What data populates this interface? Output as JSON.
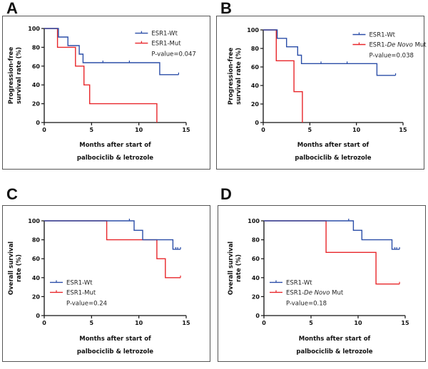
{
  "colors": {
    "wt": "#2b4ea8",
    "mut": "#e8262a",
    "axis": "#111111"
  },
  "chart_data": [
    {
      "type": "line",
      "step": true,
      "panel": "A",
      "title": "",
      "xlabel_lines": [
        "Months after start of",
        "palbociclib & letrozole"
      ],
      "ylabel_lines": [
        "Progression-free",
        "survival rate (%)"
      ],
      "xlim": [
        0,
        15
      ],
      "ylim": [
        0,
        100
      ],
      "xticks": [
        0,
        5,
        10,
        15
      ],
      "yticks": [
        0,
        20,
        40,
        60,
        80,
        100
      ],
      "legend_position": "top-right",
      "pvalue": "P-value=0.047",
      "series": [
        {
          "name": "ESR1-Wt",
          "name_prefix": "ESR1-",
          "name_italic": "",
          "name_suffix": "Wt",
          "color_key": "wt",
          "steps": [
            [
              0,
              100
            ],
            [
              1.5,
              100
            ],
            [
              1.5,
              90.9
            ],
            [
              2.5,
              90.9
            ],
            [
              2.5,
              81.8
            ],
            [
              3.7,
              81.8
            ],
            [
              3.7,
              72.7
            ],
            [
              4.1,
              72.7
            ],
            [
              4.1,
              63.6
            ],
            [
              12.2,
              63.6
            ],
            [
              12.2,
              50.9
            ],
            [
              14.2,
              50.9
            ]
          ],
          "censored": [
            [
              6.2,
              63.6
            ],
            [
              9.0,
              63.6
            ],
            [
              14.2,
              50.9
            ]
          ]
        },
        {
          "name": "ESR1-Mut",
          "name_prefix": "ESR1-",
          "name_italic": "",
          "name_suffix": "Mut",
          "color_key": "mut",
          "steps": [
            [
              0,
              100
            ],
            [
              1.4,
              100
            ],
            [
              1.4,
              80
            ],
            [
              3.3,
              80
            ],
            [
              3.3,
              60
            ],
            [
              4.2,
              60
            ],
            [
              4.2,
              40
            ],
            [
              4.8,
              40
            ],
            [
              4.8,
              20
            ],
            [
              11.9,
              20
            ],
            [
              11.9,
              0
            ]
          ],
          "censored": []
        }
      ]
    },
    {
      "type": "line",
      "step": true,
      "panel": "B",
      "title": "",
      "xlabel_lines": [
        "Months after start of",
        "palbociclib & letrozole"
      ],
      "ylabel_lines": [
        "Progression-free",
        "survival rate (%)"
      ],
      "xlim": [
        0,
        15
      ],
      "ylim": [
        0,
        100
      ],
      "xticks": [
        0,
        5,
        10,
        15
      ],
      "yticks": [
        0,
        20,
        40,
        60,
        80,
        100
      ],
      "legend_position": "top-right",
      "pvalue": "P-value=0.038",
      "series": [
        {
          "name": "ESR1-Wt",
          "name_prefix": "ESR1-",
          "name_italic": "",
          "name_suffix": "Wt",
          "color_key": "wt",
          "steps": [
            [
              0,
              100
            ],
            [
              1.5,
              100
            ],
            [
              1.5,
              90.9
            ],
            [
              2.5,
              90.9
            ],
            [
              2.5,
              81.8
            ],
            [
              3.7,
              81.8
            ],
            [
              3.7,
              72.7
            ],
            [
              4.1,
              72.7
            ],
            [
              4.1,
              63.6
            ],
            [
              12.2,
              63.6
            ],
            [
              12.2,
              50.9
            ],
            [
              14.2,
              50.9
            ]
          ],
          "censored": [
            [
              6.2,
              63.6
            ],
            [
              9.0,
              63.6
            ],
            [
              14.2,
              50.9
            ]
          ]
        },
        {
          "name": "ESR1-De Novo Mut",
          "name_prefix": "ESR1-",
          "name_italic": "De Novo",
          "name_suffix": " Mut",
          "color_key": "mut",
          "steps": [
            [
              0,
              100
            ],
            [
              1.4,
              100
            ],
            [
              1.4,
              66.7
            ],
            [
              3.3,
              66.7
            ],
            [
              3.3,
              33.3
            ],
            [
              4.2,
              33.3
            ],
            [
              4.2,
              0
            ]
          ],
          "censored": []
        }
      ]
    },
    {
      "type": "line",
      "step": true,
      "panel": "C",
      "title": "",
      "xlabel_lines": [
        "Months after start of",
        "palbociclib & letrozole"
      ],
      "ylabel_lines": [
        "Overall survival",
        "rate (%)"
      ],
      "xlim": [
        0,
        15
      ],
      "ylim": [
        0,
        100
      ],
      "xticks": [
        0,
        5,
        10,
        15
      ],
      "yticks": [
        0,
        20,
        40,
        60,
        80,
        100
      ],
      "legend_position": "bottom-left",
      "pvalue": "P-value=0.24",
      "series": [
        {
          "name": "ESR1-Wt",
          "name_prefix": "ESR1-",
          "name_italic": "",
          "name_suffix": "Wt",
          "color_key": "wt",
          "steps": [
            [
              0,
              100
            ],
            [
              9.5,
              100
            ],
            [
              9.5,
              90
            ],
            [
              10.4,
              90
            ],
            [
              10.4,
              80
            ],
            [
              13.6,
              80
            ],
            [
              13.6,
              70
            ],
            [
              14.4,
              70
            ]
          ],
          "censored": [
            [
              9.0,
              100
            ],
            [
              13.9,
              70
            ],
            [
              14.1,
              70
            ],
            [
              14.4,
              70
            ]
          ]
        },
        {
          "name": "ESR1-Mut",
          "name_prefix": "ESR1-",
          "name_italic": "",
          "name_suffix": "Mut",
          "color_key": "mut",
          "steps": [
            [
              0,
              100
            ],
            [
              6.6,
              100
            ],
            [
              6.6,
              80
            ],
            [
              11.9,
              80
            ],
            [
              11.9,
              60
            ],
            [
              12.8,
              60
            ],
            [
              12.8,
              40
            ],
            [
              14.4,
              40
            ]
          ],
          "censored": [
            [
              14.4,
              40
            ]
          ]
        }
      ]
    },
    {
      "type": "line",
      "step": true,
      "panel": "D",
      "title": "",
      "xlabel_lines": [
        "Months after start of",
        "palbociclib & letrozole"
      ],
      "ylabel_lines": [
        "Overall survival",
        "rate (%)"
      ],
      "xlim": [
        0,
        15
      ],
      "ylim": [
        0,
        100
      ],
      "xticks": [
        0,
        5,
        10,
        15
      ],
      "yticks": [
        0,
        20,
        40,
        60,
        80,
        100
      ],
      "legend_position": "bottom-left",
      "pvalue": "P-value=0.18",
      "series": [
        {
          "name": "ESR1-Wt",
          "name_prefix": "ESR1-",
          "name_italic": "",
          "name_suffix": "Wt",
          "color_key": "wt",
          "steps": [
            [
              0,
              100
            ],
            [
              9.5,
              100
            ],
            [
              9.5,
              90
            ],
            [
              10.4,
              90
            ],
            [
              10.4,
              80
            ],
            [
              13.6,
              80
            ],
            [
              13.6,
              70
            ],
            [
              14.4,
              70
            ]
          ],
          "censored": [
            [
              9.0,
              100
            ],
            [
              13.9,
              70
            ],
            [
              14.1,
              70
            ],
            [
              14.4,
              70
            ]
          ]
        },
        {
          "name": "ESR1-De Novo Mut",
          "name_prefix": "ESR1-",
          "name_italic": "De Novo",
          "name_suffix": " Mut",
          "color_key": "mut",
          "steps": [
            [
              0,
              100
            ],
            [
              6.6,
              100
            ],
            [
              6.6,
              66.7
            ],
            [
              11.9,
              66.7
            ],
            [
              11.9,
              33.3
            ],
            [
              14.4,
              33.3
            ]
          ],
          "censored": [
            [
              14.4,
              33.3
            ]
          ]
        }
      ]
    }
  ]
}
